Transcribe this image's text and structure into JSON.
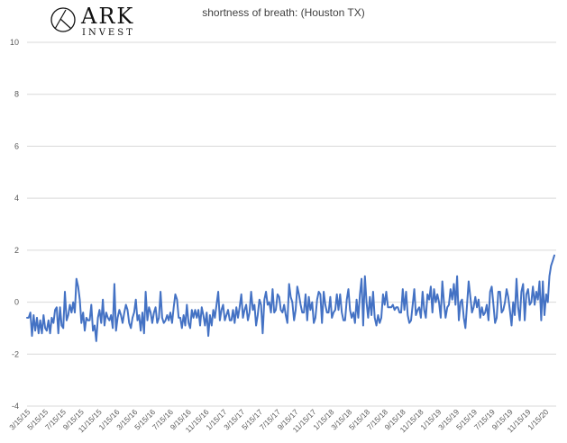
{
  "logo": {
    "name": "ARK",
    "sub": "INVEST",
    "icon": "ark-invest-logo-icon"
  },
  "chart_data": {
    "type": "line",
    "title": "shortness of breath: (Houston TX)",
    "xlabel": "",
    "ylabel": "",
    "ylim": [
      -4,
      10
    ],
    "yticks": [
      -4,
      -2,
      0,
      2,
      4,
      6,
      8,
      10
    ],
    "grid": true,
    "legend": "none",
    "line_color": "#4472C4",
    "x_tick_labels": [
      "3/15/15",
      "5/15/15",
      "7/15/15",
      "9/15/15",
      "11/15/15",
      "1/15/16",
      "3/15/16",
      "5/15/16",
      "7/15/16",
      "9/15/16",
      "11/15/16",
      "1/15/17",
      "3/15/17",
      "5/15/17",
      "7/15/17",
      "9/15/17",
      "11/15/17",
      "1/15/18",
      "3/15/18",
      "5/15/18",
      "7/15/18",
      "9/15/18",
      "11/15/18",
      "1/15/19",
      "3/15/19",
      "5/15/19",
      "7/15/19",
      "9/15/19",
      "11/15/19",
      "1/15/20"
    ],
    "series": [
      {
        "name": "",
        "values": [
          -0.6,
          -0.6,
          -0.4,
          -1.3,
          -0.5,
          -1.1,
          -0.6,
          -1.2,
          -0.7,
          -1.2,
          -0.5,
          -1.0,
          -1.1,
          -0.7,
          -1.2,
          -0.6,
          -0.8,
          -0.3,
          -0.2,
          -1.2,
          -0.2,
          -0.9,
          -1.0,
          0.4,
          -0.7,
          -0.5,
          -0.1,
          -0.4,
          0.0,
          -0.4,
          0.9,
          0.6,
          0.1,
          -0.8,
          -0.4,
          -1.1,
          -0.6,
          -0.7,
          -0.7,
          -0.1,
          -1.1,
          -0.9,
          -1.5,
          -0.6,
          -0.3,
          -0.8,
          0.1,
          -0.9,
          -0.4,
          -0.6,
          -0.7,
          -0.5,
          -1.0,
          0.7,
          -1.1,
          -0.6,
          -0.3,
          -0.5,
          -0.8,
          -0.4,
          -0.1,
          -0.3,
          -0.8,
          -1.0,
          -0.6,
          -0.4,
          0.1,
          -0.7,
          -0.5,
          -1.1,
          -0.4,
          -1.2,
          0.4,
          -0.7,
          -0.2,
          -0.4,
          -0.8,
          -0.4,
          -0.2,
          -0.8,
          -0.6,
          0.4,
          -0.6,
          -0.8,
          -0.7,
          -0.5,
          -0.7,
          -0.4,
          -0.8,
          -0.2,
          0.3,
          0.1,
          -0.6,
          -0.6,
          -1.0,
          -0.5,
          -0.9,
          -0.1,
          -0.8,
          -1.0,
          -0.3,
          -0.6,
          -0.3,
          -0.6,
          -0.3,
          -0.9,
          -0.2,
          -0.5,
          -0.9,
          -0.4,
          -1.3,
          -0.5,
          -0.9,
          -0.3,
          -0.6,
          -0.1,
          0.4,
          -0.7,
          -0.3,
          -0.1,
          -0.7,
          -0.5,
          -0.3,
          -0.7,
          -0.7,
          -0.3,
          -0.8,
          -0.2,
          -0.6,
          -0.2,
          0.3,
          -0.6,
          -0.3,
          -0.1,
          -0.7,
          -0.4,
          0.4,
          -0.3,
          -0.1,
          -0.9,
          -0.5,
          0.1,
          -0.1,
          -1.2,
          0.1,
          0.4,
          -0.1,
          0.0,
          -0.4,
          0.5,
          -0.4,
          -0.3,
          0.3,
          0.2,
          -0.3,
          -0.4,
          -0.1,
          -0.5,
          -0.8,
          0.7,
          0.2,
          0.0,
          -0.7,
          -0.3,
          0.6,
          0.3,
          -0.1,
          -0.4,
          -0.4,
          0.3,
          -0.7,
          0.2,
          -0.3,
          0.0,
          -0.8,
          -0.6,
          0.1,
          0.4,
          0.3,
          -0.8,
          0.4,
          -0.1,
          -0.4,
          -0.4,
          0.2,
          -0.6,
          -0.4,
          -0.3,
          0.3,
          -0.3,
          0.3,
          -0.4,
          -0.7,
          -0.7,
          0.1,
          0.5,
          -0.3,
          -0.6,
          -0.4,
          -0.8,
          0.1,
          -0.6,
          0.3,
          0.9,
          -0.9,
          1.0,
          0.0,
          -0.6,
          0.2,
          -0.5,
          0.4,
          -0.6,
          -0.9,
          -0.5,
          -0.8,
          -0.6,
          0.3,
          -0.1,
          0.4,
          -0.2,
          -0.2,
          -0.2,
          -0.1,
          -0.3,
          -0.2,
          -0.2,
          -0.4,
          -0.4,
          0.5,
          -0.3,
          0.4,
          -0.5,
          -0.8,
          -0.7,
          -0.1,
          0.5,
          -0.5,
          -0.3,
          -0.2,
          -0.6,
          0.4,
          -0.3,
          -0.6,
          0.3,
          0.1,
          0.6,
          -0.4,
          0.5,
          0.0,
          0.3,
          0.0,
          -0.6,
          0.8,
          0.0,
          -0.6,
          -0.2,
          -0.1,
          0.5,
          0.1,
          0.7,
          -0.1,
          1.0,
          -0.7,
          0.0,
          0.1,
          -0.6,
          -1.0,
          -0.1,
          0.8,
          0.2,
          -0.4,
          -0.2,
          0.2,
          -0.2,
          0.1,
          -0.6,
          -0.2,
          -0.5,
          -0.4,
          -0.1,
          -0.7,
          0.4,
          0.6,
          -0.1,
          -0.8,
          -0.6,
          0.4,
          0.4,
          -0.4,
          -0.3,
          0.0,
          0.5,
          0.2,
          -0.3,
          -0.9,
          0.0,
          -0.5,
          0.9,
          -0.2,
          -0.7,
          0.4,
          0.7,
          -0.7,
          0.3,
          0.5,
          -0.1,
          0.0,
          0.6,
          -0.1,
          0.4,
          0.1,
          0.8,
          -0.7,
          0.8,
          -0.5,
          0.3,
          0.0,
          1.0,
          1.4,
          1.6,
          1.8
        ]
      }
    ]
  }
}
